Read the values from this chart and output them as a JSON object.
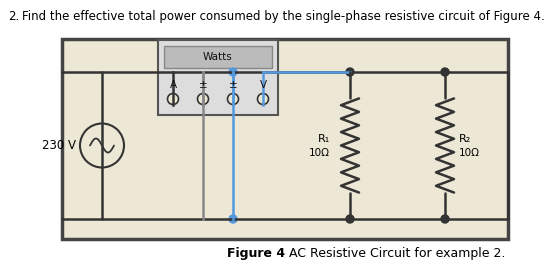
{
  "title_number": "2.",
  "title_text": "Find the effective total power consumed by the single-phase resistive circuit of Figure 4.",
  "figure_caption_bold": "Figure 4",
  "figure_caption_normal": " AC Resistive Circuit for example 2.",
  "bg_color": "#ede8d5",
  "border_color": "#444444",
  "wire_color": "#333333",
  "grey_wire_color": "#888888",
  "blue_wire_color": "#5599dd",
  "voltage_source": "230 V",
  "R1_label": "R₁",
  "R1_value": "10Ω",
  "R2_label": "R₂",
  "R2_value": "10Ω",
  "wattmeter_label": "Watts",
  "terminal_labels": [
    "A",
    "±",
    "±",
    "V"
  ],
  "node_color": "#222222",
  "blue_node_color": "#5599dd",
  "wm_bg": "#dddddd",
  "wm_display_bg": "#bbbbbb"
}
